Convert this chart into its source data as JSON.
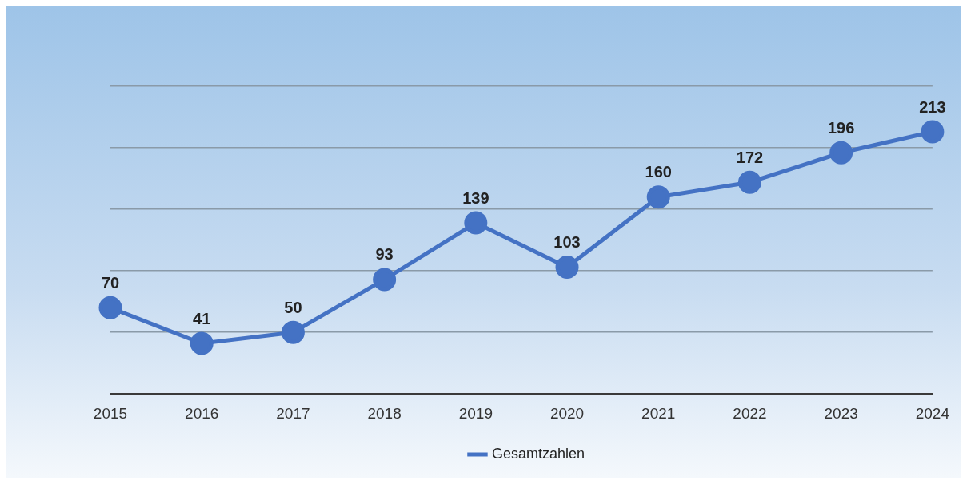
{
  "chart_data": {
    "type": "line",
    "categories": [
      "2015",
      "2016",
      "2017",
      "2018",
      "2019",
      "2020",
      "2021",
      "2022",
      "2023",
      "2024"
    ],
    "series": [
      {
        "name": "Gesamtzahlen",
        "color": "#4472c4",
        "values": [
          70,
          41,
          50,
          93,
          139,
          103,
          160,
          172,
          196,
          213
        ]
      }
    ],
    "ylim": [
      0,
      250
    ],
    "yticks": [
      {
        "value": 0,
        "label": null
      },
      {
        "value": 50,
        "label": null
      },
      {
        "value": 100,
        "label": null
      },
      {
        "value": 150,
        "label": null
      },
      {
        "value": 200,
        "label": null
      },
      {
        "value": 250,
        "label": null
      }
    ],
    "grid": "y",
    "legend": "bottom",
    "tick_labels": "x",
    "marker": "circle",
    "line_style": "solid",
    "data_labels": true
  }
}
